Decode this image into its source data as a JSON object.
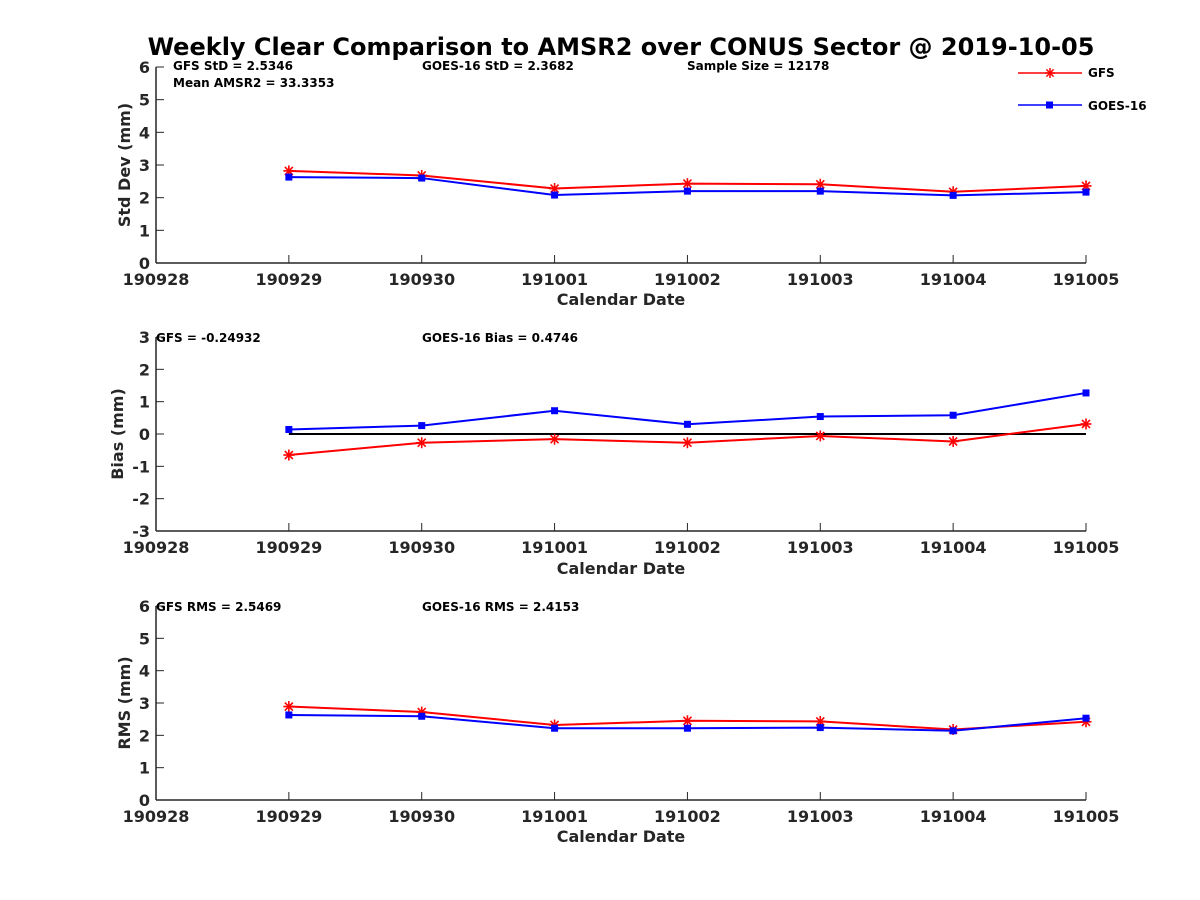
{
  "figure_title": "Weekly Clear Comparison to AMSR2 over CONUS Sector @ 2019-10-05",
  "legend": [
    {
      "label": "GFS",
      "color": "#ff0000",
      "marker": "asterisk"
    },
    {
      "label": "GOES-16",
      "color": "#0000ff",
      "marker": "square"
    }
  ],
  "colors": {
    "gfs": "#ff0000",
    "goes16": "#0000ff",
    "zero_line": "#000000",
    "axes": "#262626"
  },
  "chart_data": [
    {
      "type": "line",
      "xlabel": "Calendar Date",
      "ylabel": "Std Dev (mm)",
      "x_ticks": [
        "190928",
        "190929",
        "190930",
        "191001",
        "191002",
        "191003",
        "191004",
        "191005"
      ],
      "y_ticks": [
        "0",
        "1",
        "2",
        "3",
        "4",
        "5",
        "6"
      ],
      "ylim": [
        0,
        6
      ],
      "x": [
        "190929",
        "190930",
        "191001",
        "191002",
        "191003",
        "191004",
        "191005"
      ],
      "series": [
        {
          "name": "GFS",
          "values": [
            2.82,
            2.68,
            2.28,
            2.43,
            2.41,
            2.18,
            2.36
          ]
        },
        {
          "name": "GOES-16",
          "values": [
            2.63,
            2.6,
            2.08,
            2.2,
            2.2,
            2.07,
            2.17
          ]
        }
      ],
      "zero_line": false,
      "annotations": [
        "GFS StD = 2.5346",
        "Mean AMSR2 = 33.3353",
        "GOES-16 StD = 2.3682",
        "Sample Size = 12178"
      ]
    },
    {
      "type": "line",
      "xlabel": "Calendar Date",
      "ylabel": "Bias (mm)",
      "x_ticks": [
        "190928",
        "190929",
        "190930",
        "191001",
        "191002",
        "191003",
        "191004",
        "191005"
      ],
      "y_ticks": [
        "-3",
        "-2",
        "-1",
        "0",
        "1",
        "2",
        "3"
      ],
      "ylim": [
        -3,
        3
      ],
      "x": [
        "190929",
        "190930",
        "191001",
        "191002",
        "191003",
        "191004",
        "191005"
      ],
      "series": [
        {
          "name": "GFS",
          "values": [
            -0.65,
            -0.27,
            -0.16,
            -0.27,
            -0.06,
            -0.23,
            0.31
          ]
        },
        {
          "name": "GOES-16",
          "values": [
            0.14,
            0.26,
            0.72,
            0.3,
            0.54,
            0.58,
            1.27
          ]
        }
      ],
      "zero_line": true,
      "annotations": [
        "GFS = -0.24932",
        "GOES-16 Bias  = 0.4746"
      ]
    },
    {
      "type": "line",
      "xlabel": "Calendar Date",
      "ylabel": "RMS (mm)",
      "x_ticks": [
        "190928",
        "190929",
        "190930",
        "191001",
        "191002",
        "191003",
        "191004",
        "191005"
      ],
      "y_ticks": [
        "0",
        "1",
        "2",
        "3",
        "4",
        "5",
        "6"
      ],
      "ylim": [
        0,
        6
      ],
      "x": [
        "190929",
        "190930",
        "191001",
        "191002",
        "191003",
        "191004",
        "191005"
      ],
      "series": [
        {
          "name": "GFS",
          "values": [
            2.89,
            2.72,
            2.32,
            2.45,
            2.43,
            2.18,
            2.42
          ]
        },
        {
          "name": "GOES-16",
          "values": [
            2.63,
            2.59,
            2.22,
            2.22,
            2.24,
            2.14,
            2.53
          ]
        }
      ],
      "zero_line": false,
      "annotations": [
        "GFS RMS = 2.5469",
        "GOES-16 RMS = 2.4153"
      ]
    }
  ]
}
